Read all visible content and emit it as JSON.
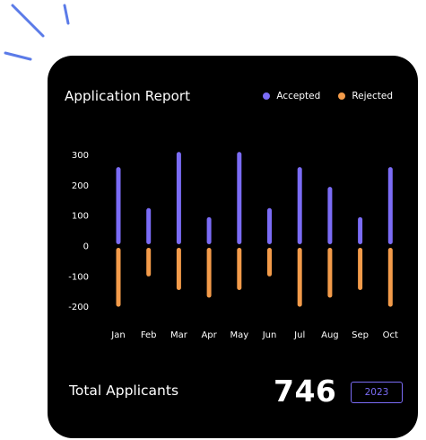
{
  "colors": {
    "accepted": "#7b6cf6",
    "rejected": "#f39b4a",
    "card_background": "#000000",
    "decoration": "#5b7be8"
  },
  "decoration": {
    "icon": "sparkle-lines-icon"
  },
  "card": {
    "title": "Application Report",
    "legend": [
      {
        "label": "Accepted",
        "color": "#7b6cf6"
      },
      {
        "label": "Rejected",
        "color": "#f39b4a"
      }
    ]
  },
  "footer": {
    "total_label": "Total Applicants",
    "total_value": "746",
    "year_button": "2023"
  },
  "chart_data": {
    "type": "bar",
    "title": "Application Report",
    "categories": [
      "Jan",
      "Feb",
      "Mar",
      "Apr",
      "May",
      "Jun",
      "Jul",
      "Aug",
      "Sep",
      "Oct"
    ],
    "series": [
      {
        "name": "Accepted",
        "values": [
          260,
          125,
          310,
          95,
          310,
          125,
          260,
          195,
          95,
          260
        ]
      },
      {
        "name": "Rejected",
        "values": [
          -200,
          -100,
          -145,
          -170,
          -145,
          -100,
          -200,
          -170,
          -145,
          -200
        ]
      }
    ],
    "yticks": [
      300,
      200,
      100,
      0,
      -100,
      -200
    ],
    "ylim": [
      -210,
      320
    ],
    "legend_position": "top-right",
    "grid": false
  }
}
